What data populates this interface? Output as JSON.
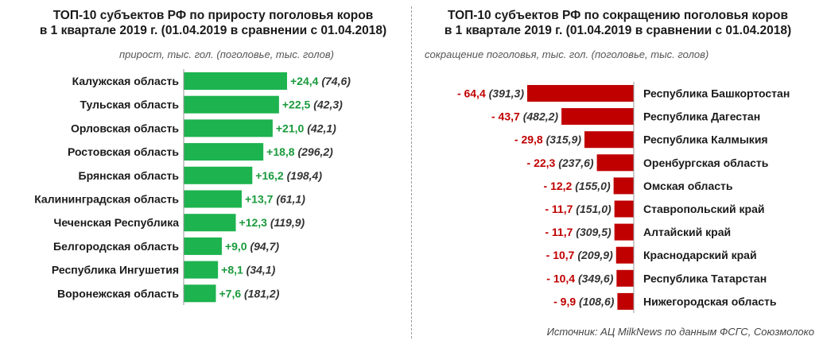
{
  "left_chart": {
    "title_line1": "ТОП-10 субъектов РФ по приросту поголовья коров",
    "title_line2": "в 1 квартале 2019 г. (01.04.2019 в сравнении с 01.04.2018)",
    "subtitle": "прирост, тыс. гол. (поголовье, тыс. голов)"
  },
  "right_chart": {
    "title_line1": "ТОП-10 субъектов РФ по сокращению поголовья коров",
    "title_line2": "в 1 квартале 2019 г. (01.04.2019 в сравнении с 01.04.2018)",
    "subtitle": "сокращение поголовья, тыс. гол. (поголовье, тыс. голов)"
  },
  "source": "Источник: АЦ MilkNews по данным ФСГС, Союзмолоко",
  "colors": {
    "growth": "#1db34f",
    "decline": "#c00000",
    "growth_text": "#1a9a3c",
    "decline_text": "#c00000"
  },
  "chart_data": [
    {
      "type": "bar",
      "orientation": "horizontal",
      "title": "ТОП-10 субъектов РФ по приросту поголовья коров в 1 квартале 2019 г. (01.04.2019 в сравнении с 01.04.2018)",
      "xlabel": "прирост, тыс. гол. (поголовье, тыс. голов)",
      "categories": [
        "Калужская область",
        "Тульская область",
        "Орловская область",
        "Ростовская область",
        "Брянская область",
        "Калининградская область",
        "Чеченская Республика",
        "Белгородская область",
        "Республика Ингушетия",
        "Воронежская область"
      ],
      "values": [
        24.4,
        22.5,
        21.0,
        18.8,
        16.2,
        13.7,
        12.3,
        9.0,
        8.1,
        7.6
      ],
      "value_labels": [
        "+24,4",
        "+22,5",
        "+21,0",
        "+18,8",
        "+16,2",
        "+13,7",
        "+12,3",
        "+9,0",
        "+8,1",
        "+7,6"
      ],
      "herd_labels": [
        "(74,6)",
        "(42,3)",
        "(42,1)",
        "(296,2)",
        "(198,4)",
        "(61,1)",
        "(119,9)",
        "(94,7)",
        "(34,1)",
        "(181,2)"
      ],
      "herd": [
        74.6,
        42.3,
        42.1,
        296.2,
        198.4,
        61.1,
        119.9,
        94.7,
        34.1,
        181.2
      ]
    },
    {
      "type": "bar",
      "orientation": "horizontal",
      "title": "ТОП-10 субъектов РФ по сокращению поголовья коров в 1 квартале 2019 г. (01.04.2019 в сравнении с 01.04.2018)",
      "xlabel": "сокращение поголовья, тыс. гол. (поголовье, тыс. голов)",
      "categories": [
        "Республика Башкортостан",
        "Республика Дагестан",
        "Республика Калмыкия",
        "Оренбургская область",
        "Омская область",
        "Ставропольский край",
        "Алтайский край",
        "Краснодарский край",
        "Республика Татарстан",
        "Нижегородская область"
      ],
      "values": [
        -64.4,
        -43.7,
        -29.8,
        -22.3,
        -12.2,
        -11.7,
        -11.7,
        -10.7,
        -10.4,
        -9.9
      ],
      "value_labels": [
        "- 64,4",
        "- 43,7",
        "- 29,8",
        "- 22,3",
        "- 12,2",
        "- 11,7",
        "- 11,7",
        "- 10,7",
        "- 10,4",
        "- 9,9"
      ],
      "herd_labels": [
        "(391,3)",
        "(482,2)",
        "(315,9)",
        "(237,6)",
        "(155,0)",
        "(151,0)",
        "(309,5)",
        "(209,9)",
        "(349,6)",
        "(108,6)"
      ],
      "herd": [
        391.3,
        482.2,
        315.9,
        237.6,
        155.0,
        151.0,
        309.5,
        209.9,
        349.6,
        108.6
      ]
    }
  ]
}
